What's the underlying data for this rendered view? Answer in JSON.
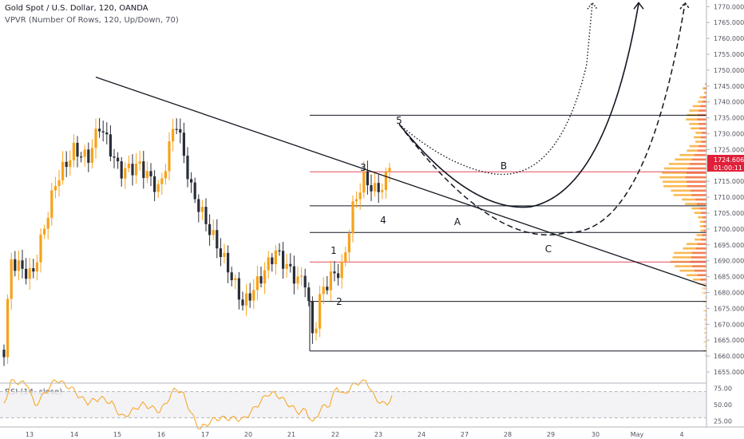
{
  "header": {
    "symbol_title": "Gold Spot / U.S. Dollar, 120, OANDA",
    "indicator_title": "VPVR (Number Of Rows, 120, Up/Down, 70)",
    "rsi_title": "RSI (14, close)"
  },
  "price_badges": {
    "last_price": "1724.606",
    "countdown": "01:00:11"
  },
  "colors": {
    "up_candle": "#f7a21b",
    "down_candle": "#2a2e39",
    "level_line": "#131722",
    "resistance_line": "#e04f5f",
    "price_badge": "#e0203a",
    "rsi_line": "#f7a21b",
    "volume_up": "#f7a21b",
    "volume_down": "#f05d5e"
  },
  "chart_data": {
    "type": "candlestick",
    "instrument": "XAU/USD",
    "interval": "120",
    "x_axis": {
      "tick_labels": [
        "13",
        "14",
        "15",
        "16",
        "17",
        "20",
        "21",
        "22",
        "23",
        "24",
        "27",
        "28",
        "29",
        "30",
        "May",
        "4"
      ]
    },
    "y_axis": {
      "range": [
        1652,
        1775
      ],
      "tick_values": [
        1655,
        1660,
        1665,
        1670,
        1675,
        1680,
        1685,
        1690,
        1695,
        1700,
        1705,
        1710,
        1715,
        1720,
        1725,
        1730,
        1735,
        1740,
        1745,
        1750,
        1755,
        1760,
        1765,
        1770
      ],
      "tick_labels": [
        "1655.000",
        "1660.000",
        "1665.000",
        "1670.000",
        "1675.000",
        "1680.000",
        "1685.000",
        "1690.000",
        "1695.000",
        "1700.000",
        "1705.000",
        "1710.000",
        "1715.000",
        "1720.000",
        "1725.000",
        "1730.000",
        "1735.000",
        "1740.000",
        "1745.000",
        "1750.000",
        "1755.000",
        "1760.000",
        "1765.000",
        "1770.000"
      ]
    },
    "horizontal_levels": [
      {
        "price": 1735.8,
        "style": "black"
      },
      {
        "price": 1718.0,
        "style": "red"
      },
      {
        "price": 1707.3,
        "style": "black"
      },
      {
        "price": 1698.9,
        "style": "black"
      },
      {
        "price": 1689.6,
        "style": "red"
      },
      {
        "price": 1677.2,
        "style": "black"
      },
      {
        "price": 1661.6,
        "style": "black"
      }
    ],
    "trendline": {
      "from": [
        "14",
        1747.8
      ],
      "to": [
        "4",
        1682.0
      ]
    },
    "wave_labels": [
      "5",
      "3",
      "4",
      "1",
      "2",
      "A",
      "B",
      "C"
    ],
    "projection_styles": [
      "dotted",
      "solid",
      "dashed"
    ],
    "rsi": {
      "tick_values": [
        25,
        50,
        75
      ],
      "tick_labels": [
        "25.00",
        "50.00",
        "75.00"
      ],
      "band": [
        30,
        70
      ]
    }
  }
}
